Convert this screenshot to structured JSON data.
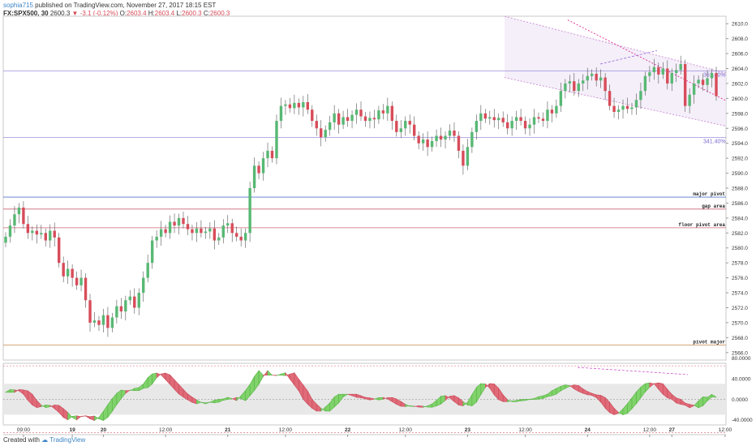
{
  "header": {
    "user": "sophia715",
    "published": " published on TradingView.com, November 27, 2017 18:15 EST",
    "symbol": "FX:SPX500, 30",
    "last": "2600.3",
    "change": "-3.1 (-0.12%)",
    "o_label": "O:",
    "o": "2603.4",
    "h_label": "H:",
    "h": "2603.4",
    "l_label": "L:",
    "l": "2600.3",
    "c_label": "C:",
    "c": "2600.3"
  },
  "footer": {
    "created": "Created with",
    "brand": "TradingView"
  },
  "colors": {
    "up": "#58b874",
    "down": "#d84c5a",
    "channel": "#c77dcf",
    "osc_fill": "#e8e8e8"
  },
  "chart_data": {
    "type": "candlestick",
    "title": "",
    "xlabel": "",
    "ylabel": "",
    "ylim": [
      2565,
      2611
    ],
    "yticks": [
      2566,
      2568,
      2570,
      2572,
      2574,
      2576,
      2578,
      2580,
      2582,
      2584,
      2586,
      2588,
      2590,
      2592,
      2594,
      2596,
      2598,
      2600,
      2602,
      2604,
      2606,
      2608,
      2610
    ],
    "xticks": [
      "09:00",
      "19",
      "20",
      "12:00",
      "21",
      "12:00",
      "22",
      "12:00",
      "23",
      "12:00",
      "24",
      "12:00",
      "27",
      "12:00"
    ],
    "closes": [
      2581.5,
      2583.0,
      2584.5,
      2585.4,
      2583.2,
      2582.0,
      2582.3,
      2581.8,
      2582.0,
      2581.0,
      2582.3,
      2581.4,
      2578.0,
      2576.2,
      2577.2,
      2576.0,
      2575.0,
      2576.0,
      2573.0,
      2570.0,
      2570.3,
      2569.7,
      2571.0,
      2569.3,
      2570.7,
      2572.2,
      2571.5,
      2573.0,
      2573.5,
      2572.0,
      2574.0,
      2576.0,
      2578.0,
      2581.0,
      2581.5,
      2582.5,
      2582.0,
      2583.5,
      2583.0,
      2584.0,
      2583.2,
      2582.5,
      2582.0,
      2582.6,
      2582.0,
      2582.2,
      2582.6,
      2581.0,
      2581.4,
      2583.0,
      2583.3,
      2582.0,
      2581.5,
      2581.0,
      2582.0,
      2588.0,
      2591.0,
      2590.0,
      2592.0,
      2593.0,
      2592.0,
      2597.0,
      2599.0,
      2599.2,
      2598.7,
      2599.4,
      2598.8,
      2599.5,
      2598.5,
      2597.0,
      2596.0,
      2594.8,
      2595.8,
      2596.8,
      2598.0,
      2596.5,
      2597.5,
      2597.0,
      2597.8,
      2598.5,
      2597.6,
      2597.0,
      2597.4,
      2597.2,
      2598.4,
      2598.0,
      2599.0,
      2597.0,
      2595.5,
      2596.0,
      2597.0,
      2596.5,
      2595.0,
      2594.0,
      2594.5,
      2593.5,
      2594.3,
      2595.0,
      2594.5,
      2595.0,
      2595.7,
      2595.0,
      2593.0,
      2591.0,
      2593.5,
      2595.5,
      2597.0,
      2598.0,
      2597.3,
      2597.5,
      2597.1,
      2597.4,
      2596.8,
      2596.0,
      2597.0,
      2597.5,
      2597.0,
      2596.0,
      2596.5,
      2597.5,
      2597.3,
      2597.0,
      2598.5,
      2598.0,
      2599.0,
      2601.0,
      2602.0,
      2602.3,
      2601.0,
      2602.0,
      2602.4,
      2603.0,
      2603.3,
      2602.4,
      2602.8,
      2601.0,
      2599.0,
      2598.2,
      2598.5,
      2599.0,
      2598.6,
      2598.8,
      2599.8,
      2601.0,
      2603.0,
      2603.5,
      2604.2,
      2603.2,
      2604.0,
      2602.0,
      2603.4,
      2603.8,
      2604.6,
      2599.0,
      2600.5,
      2602.0,
      2602.5,
      2601.8,
      2602.7,
      2603.4,
      2600.3
    ],
    "oscillator": {
      "ylim": [
        -50,
        70
      ],
      "yticks": [
        80,
        40,
        0,
        -40
      ],
      "tick_labels": [
        "80.0000",
        "40.0000",
        "0.0000",
        "-40.0000"
      ],
      "bands": [
        -30,
        30
      ],
      "limits": [
        -65,
        65
      ]
    },
    "levels": [
      {
        "label": "major pivot",
        "value": 2586.8,
        "color": "#5577cc"
      },
      {
        "label": "gap area",
        "value": 2585.2,
        "color": "#cc6677"
      },
      {
        "label": "floor pivot area",
        "value": 2582.7,
        "color": "#cc6677"
      },
      {
        "label": "pivot major",
        "value": 2567.0,
        "color": "#cc9966"
      }
    ],
    "fib_levels": [
      {
        "label": "341.40%",
        "value": 2594.8
      },
      {
        "label": "361.40%",
        "value": 2603.7
      }
    ]
  }
}
